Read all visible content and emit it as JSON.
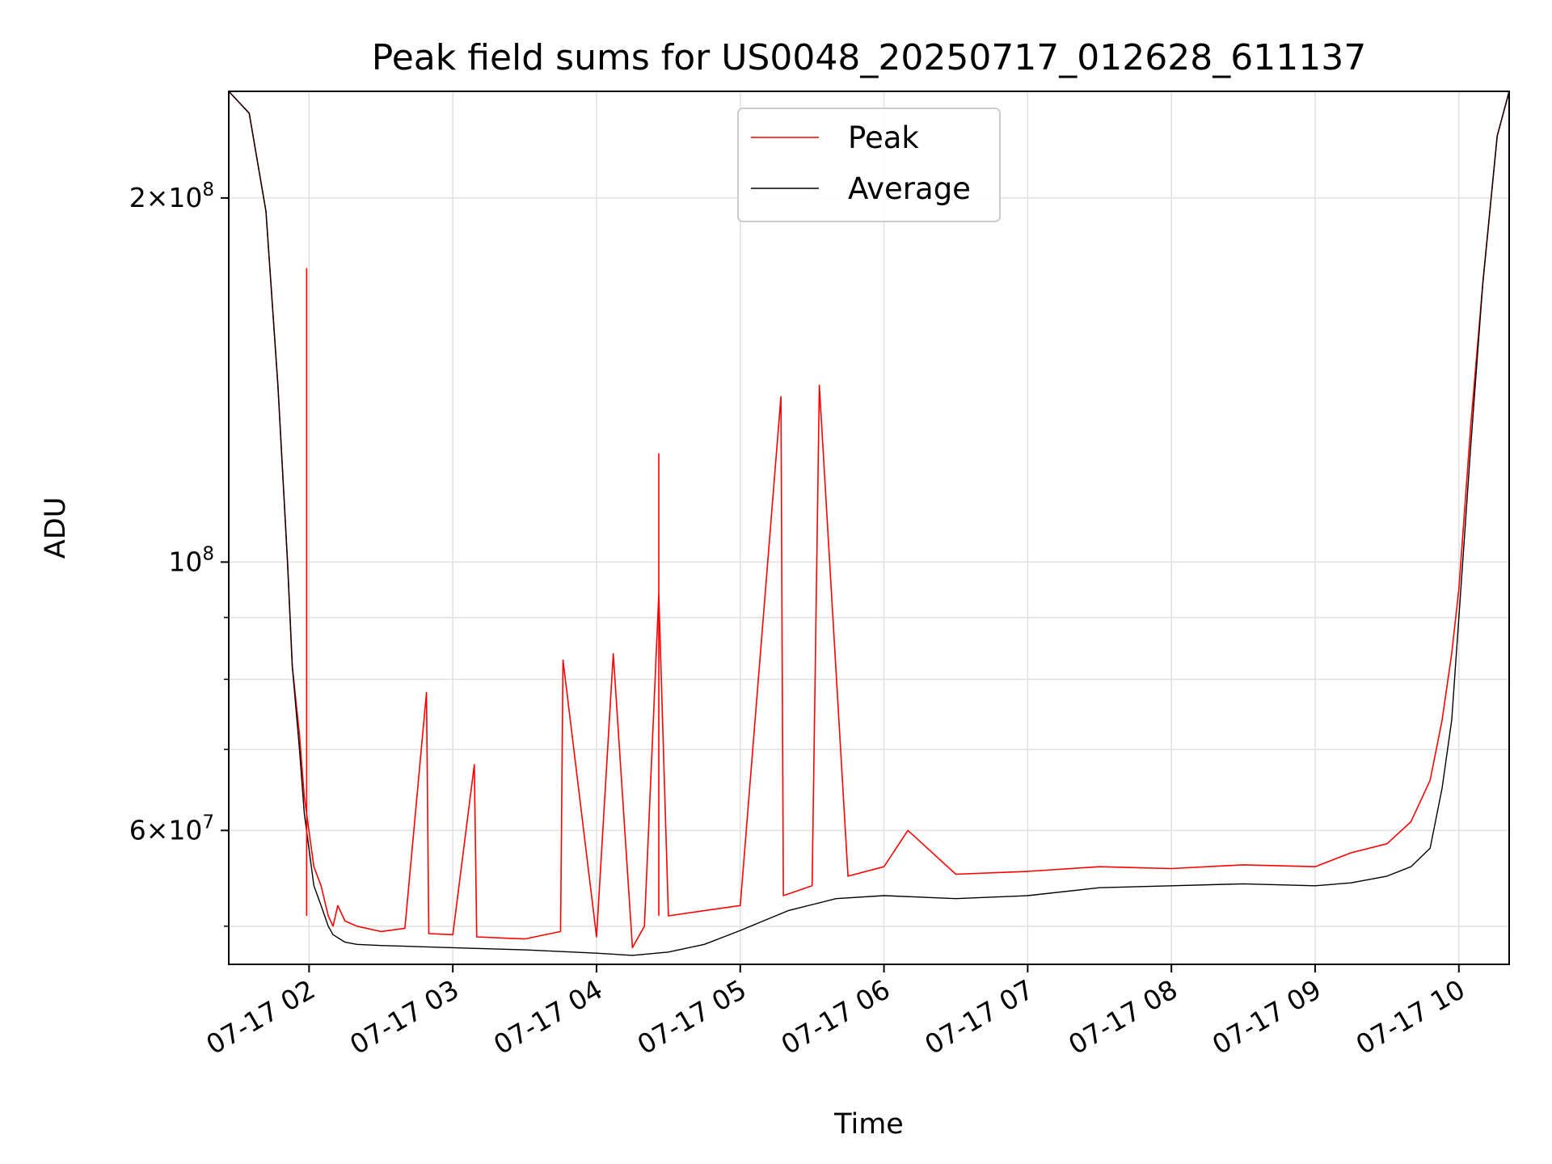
{
  "chart_data": {
    "type": "line",
    "title": "Peak field sums for US0048_20250717_012628_611137",
    "xlabel": "Time",
    "ylabel": "ADU",
    "y_scale": "log",
    "ylim": [
      46500000,
      245000000
    ],
    "xlim": [
      "2025-07-17T01:26:28",
      "2025-07-17T10:21:00"
    ],
    "grid": true,
    "legend_position": "top-center",
    "x_ticks": [
      {
        "t": "2025-07-17T02:00:00",
        "label": "07-17 02"
      },
      {
        "t": "2025-07-17T03:00:00",
        "label": "07-17 03"
      },
      {
        "t": "2025-07-17T04:00:00",
        "label": "07-17 04"
      },
      {
        "t": "2025-07-17T05:00:00",
        "label": "07-17 05"
      },
      {
        "t": "2025-07-17T06:00:00",
        "label": "07-17 06"
      },
      {
        "t": "2025-07-17T07:00:00",
        "label": "07-17 07"
      },
      {
        "t": "2025-07-17T08:00:00",
        "label": "07-17 08"
      },
      {
        "t": "2025-07-17T09:00:00",
        "label": "07-17 09"
      },
      {
        "t": "2025-07-17T10:00:00",
        "label": "07-17 10"
      }
    ],
    "y_ticks_major": [
      {
        "value": 60000000,
        "mantissa": "6",
        "exponent": "7"
      },
      {
        "value": 100000000,
        "mantissa": "",
        "exponent": "8"
      },
      {
        "value": 200000000,
        "mantissa": "2",
        "exponent": "8"
      }
    ],
    "y_ticks_minor": [
      50000000,
      70000000,
      80000000,
      90000000
    ],
    "series": [
      {
        "name": "Peak",
        "color": "#ff0000",
        "x": [
          "2025-07-17T01:26:28",
          "2025-07-17T01:35:00",
          "2025-07-17T01:42:00",
          "2025-07-17T01:47:00",
          "2025-07-17T01:51:00",
          "2025-07-17T01:53:00",
          "2025-07-17T01:56:00",
          "2025-07-17T01:58:00",
          "2025-07-17T02:02:00",
          "2025-07-17T02:05:00",
          "2025-07-17T02:08:00",
          "2025-07-17T02:10:00",
          "2025-07-17T02:12:00",
          "2025-07-17T02:15:00",
          "2025-07-17T02:20:00",
          "2025-07-17T02:30:00",
          "2025-07-17T02:40:00",
          "2025-07-17T02:49:00",
          "2025-07-17T02:50:00",
          "2025-07-17T03:00:00",
          "2025-07-17T03:09:00",
          "2025-07-17T03:10:00",
          "2025-07-17T03:30:00",
          "2025-07-17T03:45:00",
          "2025-07-17T03:46:00",
          "2025-07-17T04:00:00",
          "2025-07-17T04:07:00",
          "2025-07-17T04:15:00",
          "2025-07-17T04:20:00",
          "2025-07-17T04:26:00",
          "2025-07-17T04:30:00",
          "2025-07-17T04:45:00",
          "2025-07-17T05:00:00",
          "2025-07-17T05:17:00",
          "2025-07-17T05:18:00",
          "2025-07-17T05:30:00",
          "2025-07-17T05:33:00",
          "2025-07-17T05:45:00",
          "2025-07-17T06:00:00",
          "2025-07-17T06:10:00",
          "2025-07-17T06:30:00",
          "2025-07-17T07:00:00",
          "2025-07-17T07:30:00",
          "2025-07-17T08:00:00",
          "2025-07-17T08:30:00",
          "2025-07-17T09:00:00",
          "2025-07-17T09:15:00",
          "2025-07-17T09:30:00",
          "2025-07-17T09:40:00",
          "2025-07-17T09:48:00",
          "2025-07-17T09:53:00",
          "2025-07-17T09:57:00",
          "2025-07-17T10:00:00",
          "2025-07-17T10:05:00",
          "2025-07-17T10:10:00",
          "2025-07-17T10:16:00",
          "2025-07-17T10:21:00"
        ],
        "values": [
          245000000,
          235000000,
          195000000,
          140000000,
          100000000,
          82000000,
          72000000,
          64000000,
          56000000,
          54000000,
          51000000,
          50000000,
          52000000,
          50500000,
          50000000,
          49500000,
          49800000,
          78000000,
          49300000,
          49200000,
          68000000,
          49000000,
          48800000,
          49500000,
          83000000,
          49000000,
          84000000,
          48000000,
          50000000,
          94000000,
          51000000,
          51500000,
          52000000,
          137000000,
          53000000,
          54000000,
          140000000,
          55000000,
          56000000,
          60000000,
          55200000,
          55500000,
          56000000,
          55800000,
          56200000,
          56000000,
          57500000,
          58500000,
          61000000,
          66000000,
          74000000,
          84000000,
          95000000,
          130000000,
          170000000,
          225000000,
          245000000
        ],
        "annotations": [
          {
            "t": "2025-07-17T01:59:00",
            "value": 175000000
          },
          {
            "t": "2025-07-17T04:26:00",
            "value": 123000000
          }
        ]
      },
      {
        "name": "Average",
        "color": "#000000",
        "x": [
          "2025-07-17T01:26:28",
          "2025-07-17T01:35:00",
          "2025-07-17T01:42:00",
          "2025-07-17T01:47:00",
          "2025-07-17T01:51:00",
          "2025-07-17T01:53:00",
          "2025-07-17T01:56:00",
          "2025-07-17T01:58:00",
          "2025-07-17T02:02:00",
          "2025-07-17T02:05:00",
          "2025-07-17T02:08:00",
          "2025-07-17T02:10:00",
          "2025-07-17T02:15:00",
          "2025-07-17T02:20:00",
          "2025-07-17T02:30:00",
          "2025-07-17T03:00:00",
          "2025-07-17T03:30:00",
          "2025-07-17T04:00:00",
          "2025-07-17T04:15:00",
          "2025-07-17T04:30:00",
          "2025-07-17T04:45:00",
          "2025-07-17T05:00:00",
          "2025-07-17T05:20:00",
          "2025-07-17T05:40:00",
          "2025-07-17T06:00:00",
          "2025-07-17T06:30:00",
          "2025-07-17T07:00:00",
          "2025-07-17T07:30:00",
          "2025-07-17T08:00:00",
          "2025-07-17T08:30:00",
          "2025-07-17T09:00:00",
          "2025-07-17T09:15:00",
          "2025-07-17T09:30:00",
          "2025-07-17T09:40:00",
          "2025-07-17T09:48:00",
          "2025-07-17T09:53:00",
          "2025-07-17T09:57:00",
          "2025-07-17T10:00:00",
          "2025-07-17T10:05:00",
          "2025-07-17T10:10:00",
          "2025-07-17T10:16:00",
          "2025-07-17T10:21:00"
        ],
        "values": [
          245000000,
          235000000,
          195000000,
          140000000,
          100000000,
          82000000,
          70000000,
          62000000,
          54000000,
          52000000,
          50000000,
          49200000,
          48500000,
          48300000,
          48200000,
          48000000,
          47800000,
          47500000,
          47300000,
          47600000,
          48300000,
          49600000,
          51500000,
          52700000,
          53000000,
          52700000,
          53000000,
          53800000,
          54000000,
          54200000,
          54000000,
          54300000,
          55000000,
          56000000,
          58000000,
          65000000,
          74000000,
          90000000,
          125000000,
          170000000,
          225000000,
          245000000
        ]
      }
    ]
  }
}
